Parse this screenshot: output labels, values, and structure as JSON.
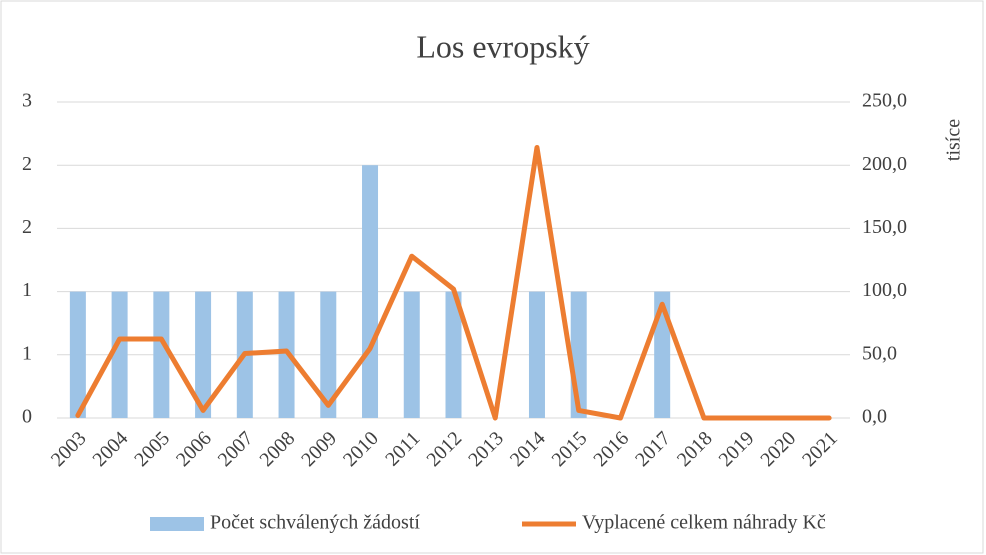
{
  "chart_data": {
    "type": "bar-line",
    "title": "Los evropský",
    "y2_label": "tisíce",
    "categories": [
      "2003",
      "2004",
      "2005",
      "2006",
      "2007",
      "2008",
      "2009",
      "2010",
      "2011",
      "2012",
      "2013",
      "2014",
      "2015",
      "2016",
      "2017",
      "2018",
      "2019",
      "2020",
      "2021"
    ],
    "series": [
      {
        "name": "Počet schválených žádostí",
        "type": "bar",
        "color": "#9dc3e6",
        "axis": "y",
        "values": [
          1,
          1,
          1,
          1,
          1,
          1,
          1,
          2,
          1,
          1,
          0,
          1,
          1,
          0,
          1,
          0,
          0,
          0,
          0
        ]
      },
      {
        "name": "Vyplacené celkem náhrady Kč",
        "type": "line",
        "color": "#ed7d31",
        "axis": "y2",
        "values": [
          2,
          62.5,
          62.5,
          6,
          51,
          53,
          10,
          55,
          128,
          102,
          0,
          214,
          6,
          0,
          90,
          0,
          0,
          0,
          0
        ]
      }
    ],
    "ylim": [
      0,
      2.5
    ],
    "yticks": [
      0,
      {
        "value": 0.5,
        "label": "1"
      },
      1,
      {
        "value": 1.5,
        "label": "2"
      },
      2,
      {
        "value": 2.5,
        "label": "3"
      }
    ],
    "y2lim": [
      0,
      250
    ],
    "y2ticks": [
      {
        "value": 0,
        "label": "0,0"
      },
      {
        "value": 50,
        "label": "50,0"
      },
      {
        "value": 100,
        "label": "100,0"
      },
      {
        "value": 150,
        "label": "150,0"
      },
      {
        "value": 200,
        "label": "200,0"
      },
      {
        "value": 250,
        "label": "250,0"
      }
    ],
    "grid": true,
    "legend": "bottom"
  }
}
